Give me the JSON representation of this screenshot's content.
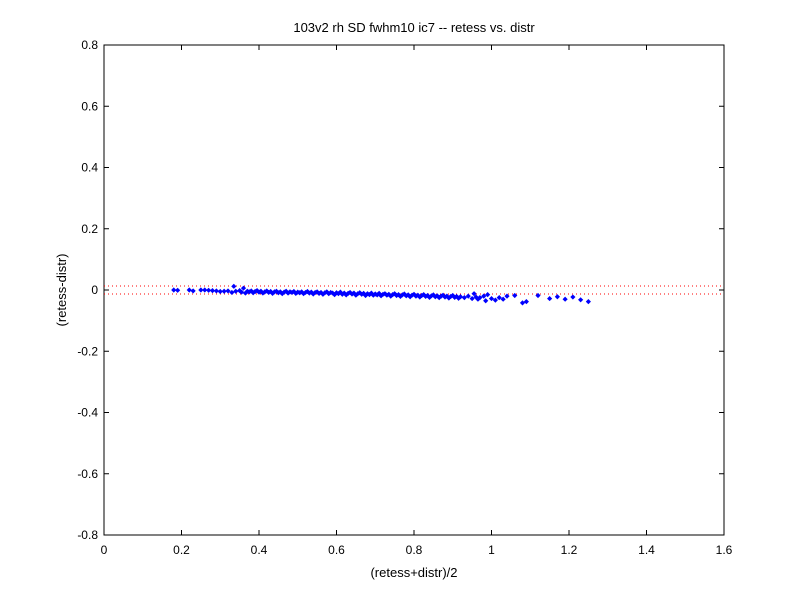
{
  "chart_data": {
    "type": "scatter",
    "title": "103v2 rh SD fwhm10 ic7 -- retess vs. distr",
    "xlabel": "(retess+distr)/2",
    "ylabel": "(retess-distr)",
    "xlim": [
      0,
      1.6
    ],
    "ylim": [
      -0.8,
      0.8
    ],
    "xticks": [
      0,
      0.2,
      0.4,
      0.6,
      0.8,
      1,
      1.2,
      1.4,
      1.6
    ],
    "yticks": [
      -0.8,
      -0.6,
      -0.4,
      -0.2,
      0,
      0.2,
      0.4,
      0.6,
      0.8
    ],
    "xtick_labels": [
      "0",
      "0.2",
      "0.4",
      "0.6",
      "0.8",
      "1",
      "1.2",
      "1.4",
      "1.6"
    ],
    "ytick_labels": [
      "-0.8",
      "-0.6",
      "-0.4",
      "-0.2",
      "0",
      "0.2",
      "0.4",
      "0.6",
      "0.8"
    ],
    "grid": false,
    "marker_color": "#0000ff",
    "reference_line_color": "#ff0000",
    "reference_lines_y": [
      0.013,
      -0.013
    ],
    "points": [
      [
        0.18,
        0.0
      ],
      [
        0.19,
        -0.001
      ],
      [
        0.22,
        0.0
      ],
      [
        0.23,
        -0.003
      ],
      [
        0.25,
        0.0
      ],
      [
        0.26,
        0.0
      ],
      [
        0.27,
        -0.001
      ],
      [
        0.28,
        -0.002
      ],
      [
        0.29,
        -0.003
      ],
      [
        0.3,
        -0.005
      ],
      [
        0.31,
        -0.004
      ],
      [
        0.32,
        -0.003
      ],
      [
        0.33,
        -0.008
      ],
      [
        0.335,
        0.012
      ],
      [
        0.34,
        -0.004
      ],
      [
        0.35,
        -0.002
      ],
      [
        0.355,
        -0.007
      ],
      [
        0.36,
        0.006
      ],
      [
        0.365,
        -0.01
      ],
      [
        0.37,
        -0.004
      ],
      [
        0.375,
        -0.006
      ],
      [
        0.38,
        -0.003
      ],
      [
        0.385,
        -0.009
      ],
      [
        0.39,
        -0.005
      ],
      [
        0.395,
        -0.002
      ],
      [
        0.4,
        -0.007
      ],
      [
        0.405,
        -0.004
      ],
      [
        0.41,
        -0.01
      ],
      [
        0.415,
        -0.006
      ],
      [
        0.42,
        -0.003
      ],
      [
        0.425,
        -0.008
      ],
      [
        0.43,
        -0.005
      ],
      [
        0.435,
        -0.011
      ],
      [
        0.44,
        -0.006
      ],
      [
        0.445,
        -0.004
      ],
      [
        0.45,
        -0.009
      ],
      [
        0.455,
        -0.006
      ],
      [
        0.46,
        -0.012
      ],
      [
        0.465,
        -0.007
      ],
      [
        0.47,
        -0.004
      ],
      [
        0.475,
        -0.01
      ],
      [
        0.48,
        -0.006
      ],
      [
        0.485,
        -0.008
      ],
      [
        0.49,
        -0.005
      ],
      [
        0.495,
        -0.011
      ],
      [
        0.5,
        -0.007
      ],
      [
        0.505,
        -0.009
      ],
      [
        0.51,
        -0.006
      ],
      [
        0.515,
        -0.012
      ],
      [
        0.52,
        -0.008
      ],
      [
        0.525,
        -0.005
      ],
      [
        0.53,
        -0.01
      ],
      [
        0.535,
        -0.007
      ],
      [
        0.54,
        -0.013
      ],
      [
        0.545,
        -0.008
      ],
      [
        0.55,
        -0.006
      ],
      [
        0.555,
        -0.011
      ],
      [
        0.56,
        -0.008
      ],
      [
        0.565,
        -0.014
      ],
      [
        0.57,
        -0.009
      ],
      [
        0.575,
        -0.006
      ],
      [
        0.58,
        -0.012
      ],
      [
        0.585,
        -0.008
      ],
      [
        0.59,
        -0.01
      ],
      [
        0.595,
        -0.015
      ],
      [
        0.6,
        -0.009
      ],
      [
        0.605,
        -0.012
      ],
      [
        0.61,
        -0.007
      ],
      [
        0.615,
        -0.014
      ],
      [
        0.62,
        -0.01
      ],
      [
        0.625,
        -0.016
      ],
      [
        0.63,
        -0.011
      ],
      [
        0.635,
        -0.008
      ],
      [
        0.64,
        -0.013
      ],
      [
        0.645,
        -0.01
      ],
      [
        0.65,
        -0.017
      ],
      [
        0.655,
        -0.012
      ],
      [
        0.66,
        -0.009
      ],
      [
        0.665,
        -0.014
      ],
      [
        0.67,
        -0.011
      ],
      [
        0.675,
        -0.018
      ],
      [
        0.68,
        -0.012
      ],
      [
        0.685,
        -0.015
      ],
      [
        0.69,
        -0.01
      ],
      [
        0.695,
        -0.017
      ],
      [
        0.7,
        -0.013
      ],
      [
        0.705,
        -0.016
      ],
      [
        0.71,
        -0.011
      ],
      [
        0.715,
        -0.019
      ],
      [
        0.72,
        -0.014
      ],
      [
        0.725,
        -0.012
      ],
      [
        0.73,
        -0.017
      ],
      [
        0.735,
        -0.014
      ],
      [
        0.74,
        -0.02
      ],
      [
        0.745,
        -0.015
      ],
      [
        0.75,
        -0.012
      ],
      [
        0.755,
        -0.018
      ],
      [
        0.76,
        -0.015
      ],
      [
        0.765,
        -0.021
      ],
      [
        0.77,
        -0.016
      ],
      [
        0.775,
        -0.013
      ],
      [
        0.78,
        -0.019
      ],
      [
        0.785,
        -0.016
      ],
      [
        0.79,
        -0.022
      ],
      [
        0.795,
        -0.017
      ],
      [
        0.8,
        -0.014
      ],
      [
        0.805,
        -0.02
      ],
      [
        0.81,
        -0.017
      ],
      [
        0.815,
        -0.023
      ],
      [
        0.82,
        -0.018
      ],
      [
        0.825,
        -0.015
      ],
      [
        0.83,
        -0.021
      ],
      [
        0.835,
        -0.018
      ],
      [
        0.84,
        -0.024
      ],
      [
        0.845,
        -0.019
      ],
      [
        0.85,
        -0.016
      ],
      [
        0.855,
        -0.022
      ],
      [
        0.86,
        -0.019
      ],
      [
        0.865,
        -0.025
      ],
      [
        0.87,
        -0.02
      ],
      [
        0.875,
        -0.017
      ],
      [
        0.88,
        -0.023
      ],
      [
        0.885,
        -0.02
      ],
      [
        0.89,
        -0.026
      ],
      [
        0.895,
        -0.021
      ],
      [
        0.9,
        -0.018
      ],
      [
        0.905,
        -0.024
      ],
      [
        0.91,
        -0.021
      ],
      [
        0.915,
        -0.027
      ],
      [
        0.92,
        -0.022
      ],
      [
        0.93,
        -0.025
      ],
      [
        0.94,
        -0.02
      ],
      [
        0.95,
        -0.028
      ],
      [
        0.955,
        -0.012
      ],
      [
        0.96,
        -0.023
      ],
      [
        0.965,
        -0.03
      ],
      [
        0.97,
        -0.025
      ],
      [
        0.98,
        -0.02
      ],
      [
        0.985,
        -0.035
      ],
      [
        0.99,
        -0.015
      ],
      [
        1.0,
        -0.028
      ],
      [
        1.01,
        -0.033
      ],
      [
        1.02,
        -0.025
      ],
      [
        1.03,
        -0.03
      ],
      [
        1.04,
        -0.02
      ],
      [
        1.06,
        -0.018
      ],
      [
        1.08,
        -0.042
      ],
      [
        1.09,
        -0.038
      ],
      [
        1.12,
        -0.018
      ],
      [
        1.15,
        -0.028
      ],
      [
        1.17,
        -0.022
      ],
      [
        1.19,
        -0.03
      ],
      [
        1.21,
        -0.023
      ],
      [
        1.23,
        -0.032
      ],
      [
        1.25,
        -0.038
      ]
    ]
  }
}
